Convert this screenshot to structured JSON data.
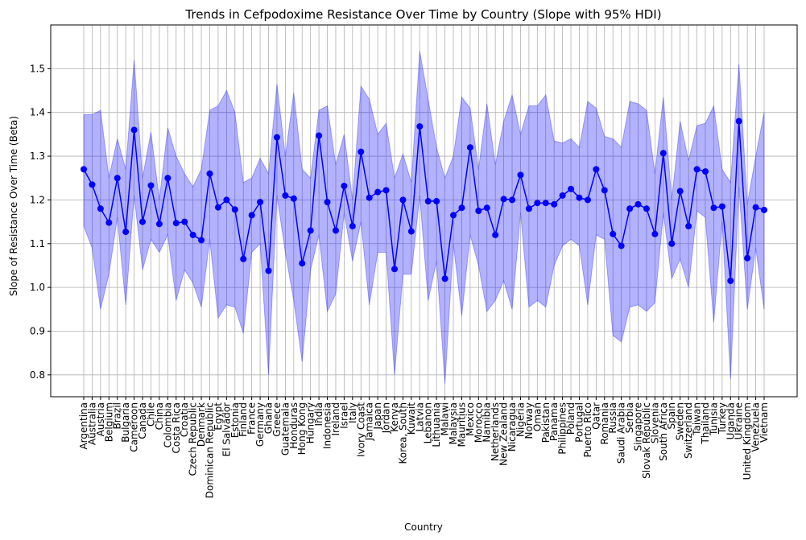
{
  "chart_data": {
    "type": "line",
    "title": "Trends in Cefpodoxime Resistance Over Time by Country (Slope with 95% HDI)",
    "xlabel": "Country",
    "ylabel": "Slope of Resistance Over Time (Beta)",
    "color": "#0000ff",
    "band_color": "#0000ff",
    "grid": true,
    "ylim": [
      0.75,
      1.6
    ],
    "yticks": [
      0.8,
      0.9,
      {
        "value": 1,
        "label": "1.0"
      },
      1.1,
      1.2,
      1.3,
      1.4,
      1.5
    ],
    "categories": [
      "Argentina",
      "Australia",
      "Austria",
      "Belgium",
      "Brazil",
      "Bulgaria",
      "Cameroon",
      "Canada",
      "Chile",
      "China",
      "Colombia",
      "Costa Rica",
      "Croatia",
      "Czech Republic",
      "Denmark",
      "Dominican Republic",
      "Egypt",
      "El Salvador",
      "Estonia",
      "Finland",
      "France",
      "Germany",
      "Ghana",
      "Greece",
      "Guatemala",
      "Honduras",
      "Hong Kong",
      "Hungary",
      "India",
      "Indonesia",
      "Ireland",
      "Israel",
      "Italy",
      "Ivory Coast",
      "Jamaica",
      "Japan",
      "Jordan",
      "Kenya",
      "Korea, South",
      "Kuwait",
      "Latvia",
      "Lebanon",
      "Lithuania",
      "Malawi",
      "Malaysia",
      "Mauritius",
      "Mexico",
      "Morocco",
      "Namibia",
      "Netherlands",
      "New Zealand",
      "Nicaragua",
      "Nigeria",
      "Norway",
      "Oman",
      "Pakistan",
      "Panama",
      "Philippines",
      "Poland",
      "Portugal",
      "Puerto Rico",
      "Qatar",
      "Romania",
      "Russia",
      "Saudi Arabia",
      "Serbia",
      "Singapore",
      "Slovak Republic",
      "Slovenia",
      "South Africa",
      "Spain",
      "Sweden",
      "Switzerland",
      "Taiwan",
      "Thailand",
      "Tunisia",
      "Turkey",
      "Uganda",
      "Ukraine",
      "United Kingdom",
      "Venezuela",
      "Vietnam"
    ],
    "values": [
      1.27,
      1.235,
      1.18,
      1.148,
      1.25,
      1.127,
      1.36,
      1.15,
      1.233,
      1.145,
      1.25,
      1.147,
      1.15,
      1.12,
      1.108,
      1.26,
      1.183,
      1.2,
      1.178,
      1.065,
      1.165,
      1.195,
      1.038,
      1.343,
      1.21,
      1.203,
      1.055,
      1.13,
      1.347,
      1.195,
      1.13,
      1.232,
      1.14,
      1.31,
      1.205,
      1.218,
      1.222,
      1.042,
      1.2,
      1.128,
      1.368,
      1.197,
      1.197,
      1.02,
      1.165,
      1.182,
      1.32,
      1.175,
      1.182,
      1.12,
      1.202,
      1.2,
      1.257,
      1.18,
      1.193,
      1.193,
      1.19,
      1.21,
      1.225,
      1.205,
      1.2,
      1.27,
      1.222,
      1.122,
      1.095,
      1.18,
      1.19,
      1.18,
      1.122,
      1.307,
      1.1,
      1.22,
      1.14,
      1.27,
      1.265,
      1.182,
      1.185,
      1.015,
      1.38,
      1.067,
      1.183,
      1.177
    ],
    "upper": [
      1.395,
      1.395,
      1.405,
      1.25,
      1.34,
      1.27,
      1.52,
      1.25,
      1.355,
      1.2,
      1.365,
      1.3,
      1.26,
      1.23,
      1.27,
      1.405,
      1.415,
      1.45,
      1.4,
      1.24,
      1.25,
      1.295,
      1.26,
      1.465,
      1.3,
      1.445,
      1.27,
      1.25,
      1.405,
      1.415,
      1.28,
      1.35,
      1.2,
      1.46,
      1.43,
      1.35,
      1.375,
      1.25,
      1.305,
      1.24,
      1.54,
      1.43,
      1.32,
      1.25,
      1.3,
      1.435,
      1.41,
      1.27,
      1.42,
      1.28,
      1.38,
      1.44,
      1.35,
      1.415,
      1.415,
      1.44,
      1.335,
      1.33,
      1.34,
      1.32,
      1.425,
      1.41,
      1.345,
      1.34,
      1.32,
      1.425,
      1.42,
      1.405,
      1.26,
      1.435,
      1.2,
      1.38,
      1.29,
      1.37,
      1.375,
      1.415,
      1.27,
      1.24,
      1.51,
      1.19,
      1.3,
      1.4
    ],
    "lower": [
      1.14,
      1.09,
      0.95,
      1.03,
      1.16,
      0.96,
      1.21,
      1.04,
      1.11,
      1.08,
      1.12,
      0.97,
      1.04,
      1.01,
      0.955,
      1.11,
      0.93,
      0.96,
      0.955,
      0.895,
      1.08,
      1.1,
      0.8,
      1.21,
      1.08,
      0.97,
      0.83,
      1.04,
      1.12,
      0.945,
      0.985,
      1.17,
      1.06,
      1.15,
      0.96,
      1.08,
      1.08,
      0.8,
      1.03,
      1.03,
      1.21,
      0.97,
      1.06,
      0.78,
      1.1,
      0.935,
      1.12,
      1.05,
      0.945,
      0.97,
      1.015,
      0.95,
      1.17,
      0.955,
      0.97,
      0.955,
      1.05,
      1.095,
      1.11,
      1.095,
      0.96,
      1.12,
      1.11,
      0.89,
      0.875,
      0.955,
      0.96,
      0.945,
      0.965,
      1.17,
      1.02,
      1.065,
      1.0,
      1.175,
      1.16,
      0.92,
      1.15,
      0.79,
      1.23,
      0.95,
      1.09,
      0.95
    ]
  }
}
